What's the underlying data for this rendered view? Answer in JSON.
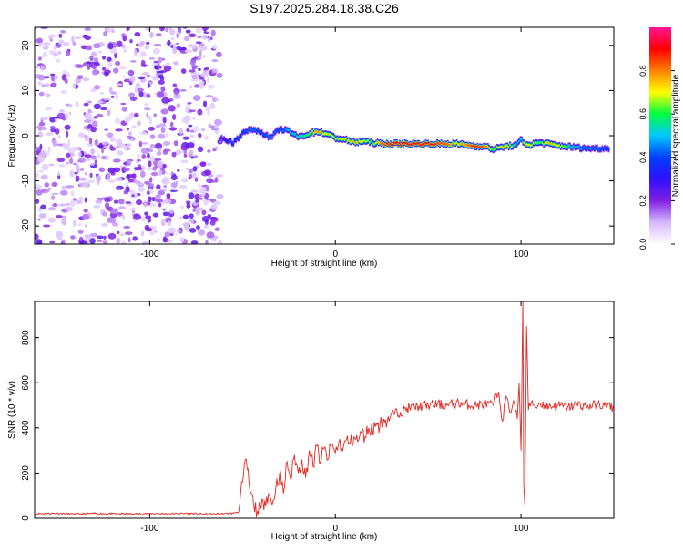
{
  "title": "S197.2025.284.18.38.C26",
  "chart_data": [
    {
      "type": "heatmap",
      "title": "S197.2025.284.18.38.C26",
      "xlabel": "Height of straight line (km)",
      "ylabel": "Frequency (Hz)",
      "xlim": [
        -162,
        150
      ],
      "ylim": [
        -24,
        24
      ],
      "xticks": [
        -100,
        0,
        100
      ],
      "yticks": [
        -20,
        -10,
        0,
        10,
        20
      ],
      "xtick_labels": [
        "-100",
        "0",
        "100"
      ],
      "ytick_labels": [
        "-20",
        "-10",
        "0",
        "10",
        "20"
      ],
      "noise_region_x": [
        -162,
        -62
      ],
      "ridge": {
        "x": [
          -62,
          -55,
          -50,
          -45,
          -40,
          -35,
          -30,
          -25,
          -20,
          -15,
          -10,
          -5,
          0,
          5,
          10,
          15,
          20,
          25,
          30,
          40,
          50,
          60,
          65,
          70,
          75,
          80,
          85,
          90,
          95,
          98,
          100,
          102,
          105,
          110,
          115,
          120,
          125,
          130,
          135,
          140,
          145,
          148
        ],
        "freq": [
          -0.5,
          -1.5,
          0.5,
          1.5,
          0.8,
          -0.5,
          1.5,
          1.0,
          -0.3,
          0.3,
          1.0,
          0.5,
          -0.5,
          -0.8,
          -1.5,
          -1.2,
          -1.5,
          -1.8,
          -1.8,
          -1.8,
          -1.8,
          -1.8,
          -1.8,
          -2.0,
          -2.3,
          -2.3,
          -3.0,
          -2.5,
          -2.2,
          -2.0,
          -0.8,
          -1.8,
          -2.0,
          -1.5,
          -1.8,
          -2.2,
          -2.4,
          -2.6,
          -2.8,
          -2.8,
          -2.8,
          -2.8
        ],
        "amplitude": [
          0.3,
          0.4,
          0.4,
          0.45,
          0.4,
          0.45,
          0.4,
          0.5,
          0.55,
          0.6,
          0.8,
          0.7,
          0.65,
          0.7,
          0.75,
          0.7,
          0.6,
          0.85,
          0.9,
          0.92,
          0.9,
          0.85,
          0.7,
          0.8,
          0.9,
          0.85,
          0.6,
          0.75,
          0.65,
          0.5,
          0.5,
          0.7,
          0.7,
          0.6,
          0.75,
          0.7,
          0.6,
          0.5,
          0.45,
          0.45,
          0.4,
          0.4
        ]
      },
      "colorbar": {
        "label": "Normalized spectral amplitude",
        "range": [
          0,
          1
        ],
        "ticks": [
          "0.0",
          "0.2",
          "0.4",
          "0.6",
          "0.8"
        ],
        "tick_values": [
          0.0,
          0.2,
          0.4,
          0.6,
          0.8
        ],
        "colors": [
          "#ffffff",
          "#d6b8ff",
          "#8020e0",
          "#3010ff",
          "#0040ff",
          "#00c8ff",
          "#00ff40",
          "#ffff00",
          "#ff8000",
          "#ff0000",
          "#ff1493"
        ]
      }
    },
    {
      "type": "line",
      "xlabel": "Height of straight line (km)",
      "ylabel": "SNR (10 * v/v)",
      "xlim": [
        -162,
        150
      ],
      "ylim": [
        0,
        960
      ],
      "xticks": [
        -100,
        0,
        100
      ],
      "yticks": [
        0,
        200,
        400,
        600,
        800
      ],
      "xtick_labels": [
        "-100",
        "0",
        "100"
      ],
      "ytick_labels": [
        "0",
        "200",
        "400",
        "600",
        "800"
      ],
      "color": "#e8251f",
      "series": [
        {
          "name": "SNR",
          "x": [
            -162,
            -150,
            -140,
            -130,
            -120,
            -110,
            -100,
            -90,
            -80,
            -70,
            -60,
            -55,
            -52,
            -50,
            -48,
            -46,
            -44,
            -42,
            -40,
            -38,
            -36,
            -34,
            -32,
            -30,
            -28,
            -26,
            -24,
            -22,
            -20,
            -18,
            -16,
            -14,
            -12,
            -10,
            -8,
            -6,
            -4,
            -2,
            0,
            2,
            4,
            6,
            8,
            10,
            12,
            14,
            16,
            18,
            20,
            22,
            24,
            26,
            28,
            30,
            35,
            40,
            45,
            50,
            55,
            60,
            65,
            70,
            75,
            80,
            85,
            88,
            90,
            92,
            94,
            96,
            98,
            99,
            100,
            101,
            101.5,
            102,
            102.5,
            103,
            104,
            106,
            108,
            110,
            115,
            120,
            125,
            130,
            135,
            140,
            145,
            150
          ],
          "y": [
            20,
            22,
            18,
            21,
            20,
            19,
            21,
            20,
            22,
            18,
            20,
            22,
            30,
            160,
            260,
            120,
            60,
            30,
            45,
            80,
            110,
            60,
            140,
            200,
            110,
            250,
            170,
            280,
            200,
            260,
            180,
            300,
            230,
            320,
            250,
            310,
            260,
            330,
            290,
            340,
            300,
            350,
            330,
            360,
            340,
            380,
            360,
            400,
            390,
            420,
            410,
            440,
            430,
            460,
            470,
            490,
            495,
            500,
            505,
            500,
            510,
            505,
            500,
            505,
            500,
            560,
            430,
            540,
            470,
            520,
            440,
            600,
            300,
            960,
            150,
            60,
            400,
            850,
            480,
            520,
            490,
            510,
            495,
            500,
            490,
            505,
            495,
            500,
            500,
            490
          ]
        }
      ]
    }
  ]
}
